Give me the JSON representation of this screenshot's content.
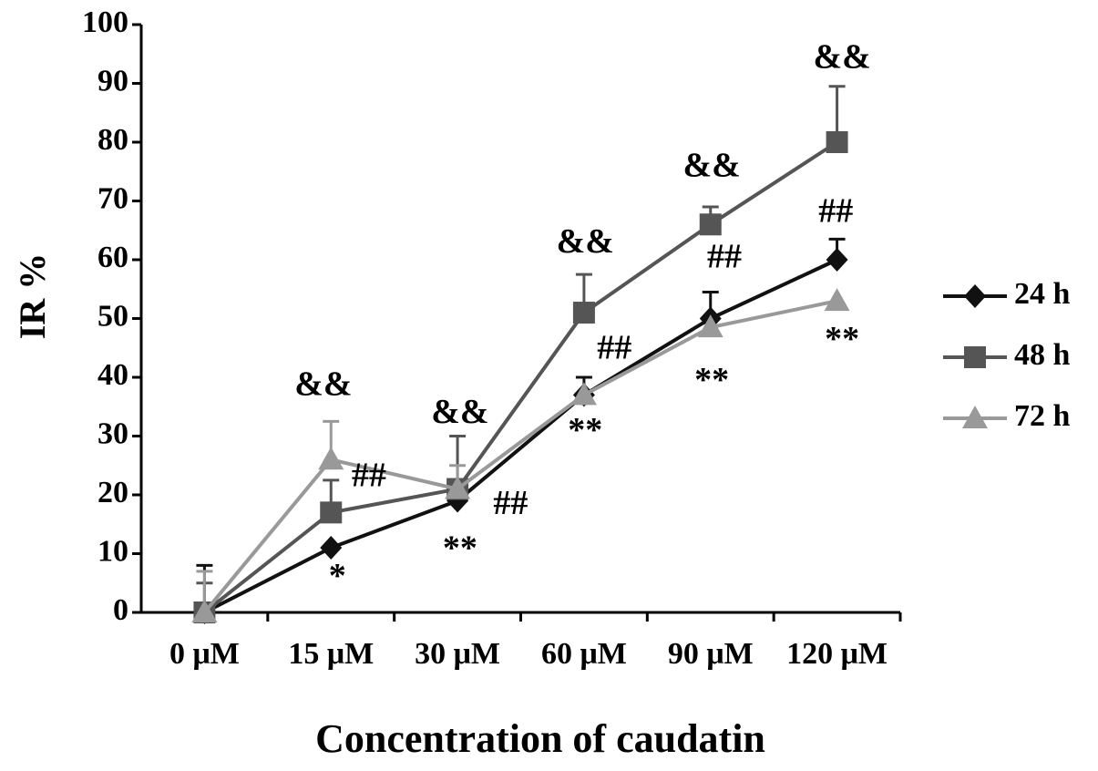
{
  "chart_data": {
    "type": "line",
    "ylabel": "IR %",
    "xlabel": "Concentration of caudatin",
    "categories": [
      "0 μM",
      "15 μM",
      "30 μM",
      "60 μM",
      "90 μM",
      "120 μM"
    ],
    "ylim": [
      0,
      100
    ],
    "yticks": [
      0,
      10,
      20,
      30,
      40,
      50,
      60,
      70,
      80,
      90,
      100
    ],
    "series": [
      {
        "name": "24 h",
        "color": "#111111",
        "marker": "diamond",
        "values": [
          0,
          11,
          19,
          37,
          50,
          60
        ],
        "errors": [
          8,
          null,
          null,
          3,
          4.5,
          3.5
        ]
      },
      {
        "name": "48 h",
        "color": "#555555",
        "marker": "square",
        "values": [
          0,
          17,
          21,
          51,
          66,
          80
        ],
        "errors": [
          5,
          5.5,
          9,
          6.5,
          3,
          9.5
        ]
      },
      {
        "name": "72 h",
        "color": "#999999",
        "marker": "triangle",
        "values": [
          0,
          26,
          21,
          37,
          48.5,
          53
        ],
        "errors": [
          7,
          6.5,
          4,
          null,
          null,
          null
        ]
      }
    ],
    "annotations": [
      {
        "text": "&&",
        "x": 0.94,
        "y": 38.3
      },
      {
        "text": "##",
        "x": 1.3,
        "y": 22.8
      },
      {
        "text": "*",
        "x": 1.05,
        "y": 5.7
      },
      {
        "text": "&&",
        "x": 2.02,
        "y": 33.6
      },
      {
        "text": "**",
        "x": 2.02,
        "y": 10.4
      },
      {
        "text": "##",
        "x": 2.42,
        "y": 18.1
      },
      {
        "text": "&&",
        "x": 3.01,
        "y": 62.6
      },
      {
        "text": "##",
        "x": 3.24,
        "y": 44.5
      },
      {
        "text": "**",
        "x": 3.01,
        "y": 30.5
      },
      {
        "text": "&&",
        "x": 4.01,
        "y": 75.5
      },
      {
        "text": "##",
        "x": 4.11,
        "y": 60
      },
      {
        "text": "**",
        "x": 4.01,
        "y": 39
      },
      {
        "text": "&&",
        "x": 5.04,
        "y": 94
      },
      {
        "text": "##",
        "x": 4.99,
        "y": 67.8
      },
      {
        "text": "**",
        "x": 5.04,
        "y": 46
      }
    ]
  }
}
